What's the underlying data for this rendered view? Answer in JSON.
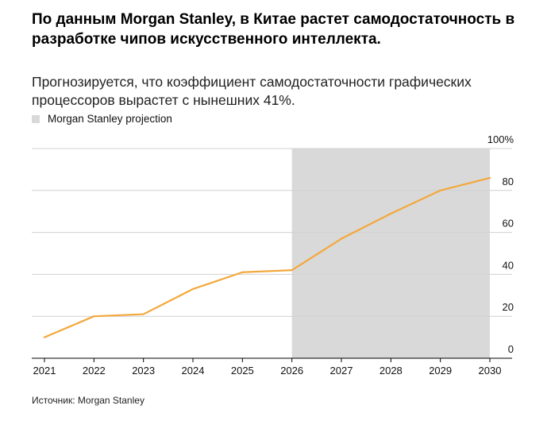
{
  "header": {
    "title_prefix": "По данным ",
    "title_highlight": "Morgan Stanley",
    "title_suffix": ", в Китае растет самодостаточность в разработке чипов искусственного интеллекта.",
    "subtitle": "Прогнозируется, что коэффициент самодостаточности графических процессоров вырастет с нынешних 41%.",
    "legend_label": "Morgan Stanley projection",
    "source": "Источник: Morgan Stanley"
  },
  "colors": {
    "line": "#f3a83b",
    "projection_band": "#d9d9d9",
    "grid": "#d0d0d0",
    "axis": "#000000"
  },
  "chart_data": {
    "type": "line",
    "title": "",
    "xlabel": "",
    "ylabel": "",
    "x": [
      2021,
      2022,
      2023,
      2024,
      2025,
      2026,
      2027,
      2028,
      2029,
      2030
    ],
    "series": [
      {
        "values": [
          10,
          20,
          21,
          33,
          41,
          42,
          57,
          69,
          80,
          86
        ]
      }
    ],
    "xlim": [
      2021,
      2030
    ],
    "ylim": [
      0,
      100
    ],
    "y_ticks": [
      0,
      20,
      40,
      60,
      80,
      100
    ],
    "y_tick_labels": [
      "0",
      "20",
      "40",
      "60",
      "80",
      "100%"
    ],
    "x_tick_labels": [
      "2021",
      "2022",
      "2023",
      "2024",
      "2025",
      "2026",
      "2027",
      "2028",
      "2029",
      "2030"
    ],
    "projection_range": [
      2026,
      2030
    ],
    "grid": true,
    "legend_position": "top-left"
  }
}
